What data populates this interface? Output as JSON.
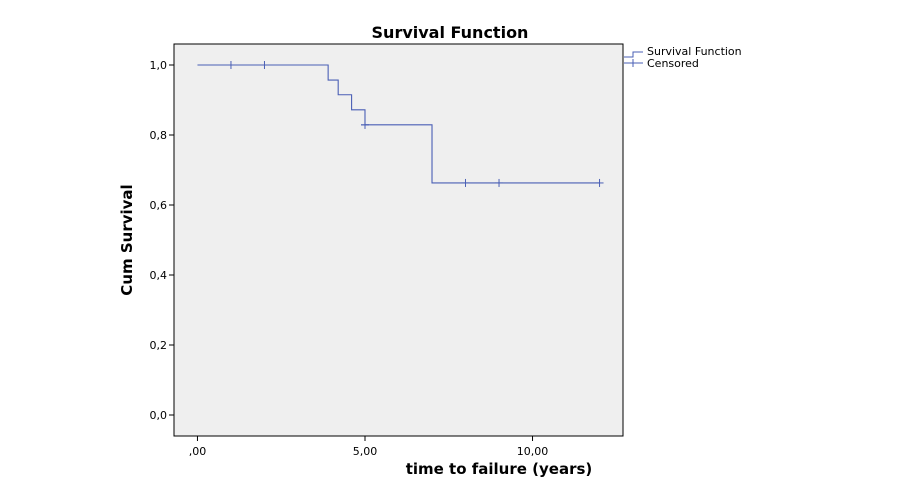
{
  "chart_data": {
    "type": "line",
    "title": "Survival Function",
    "xlabel": "time to failure (years)",
    "ylabel": "Cum Survival",
    "xlim": [
      -0.7,
      12.7
    ],
    "ylim": [
      -0.06,
      1.06
    ],
    "x_ticks": [
      0,
      5,
      10
    ],
    "x_tick_labels": [
      ",00",
      "5,00",
      "10,00"
    ],
    "y_ticks": [
      0,
      0.2,
      0.4,
      0.6,
      0.8,
      1.0
    ],
    "y_tick_labels": [
      "0,0",
      "0,2",
      "0,4",
      "0,6",
      "0,8",
      "1,0"
    ],
    "grid": false,
    "legend_position": "outside-top-right",
    "series": [
      {
        "name": "Survival Function",
        "kind": "step",
        "color": "#4a5fb5",
        "x": [
          0,
          3.9,
          4.05,
          4.2,
          4.6,
          5.0,
          7.0,
          12.0
        ],
        "y": [
          1.0,
          0.957,
          0.957,
          0.915,
          0.872,
          0.829,
          0.663,
          0.663
        ]
      },
      {
        "name": "Censored",
        "kind": "marker",
        "color": "#4a5fb5",
        "x": [
          1.0,
          2.0,
          5.0,
          5.0,
          8.0,
          9.0,
          12.0
        ],
        "y": [
          1.0,
          1.0,
          0.829,
          0.829,
          0.663,
          0.663,
          0.663
        ]
      }
    ],
    "colors": {
      "plot_background": "#efefef",
      "line": "#4a5fb5",
      "axis": "#000000"
    }
  }
}
